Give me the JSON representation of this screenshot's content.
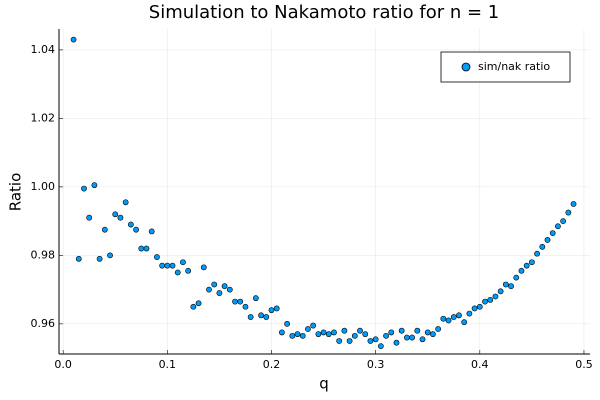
{
  "chart_data": {
    "type": "scatter",
    "title": "Simulation to Nakamoto ratio for n = 1",
    "x_label": "q",
    "y_label": "Ratio",
    "x": [
      0.01,
      0.015,
      0.02,
      0.025,
      0.03,
      0.035,
      0.04,
      0.045,
      0.05,
      0.055,
      0.06,
      0.065,
      0.07,
      0.075,
      0.08,
      0.085,
      0.09,
      0.095,
      0.1,
      0.105,
      0.11,
      0.115,
      0.12,
      0.125,
      0.13,
      0.135,
      0.14,
      0.145,
      0.15,
      0.155,
      0.16,
      0.165,
      0.17,
      0.175,
      0.18,
      0.185,
      0.19,
      0.195,
      0.2,
      0.205,
      0.21,
      0.215,
      0.22,
      0.225,
      0.23,
      0.235,
      0.24,
      0.245,
      0.25,
      0.255,
      0.26,
      0.265,
      0.27,
      0.275,
      0.28,
      0.285,
      0.29,
      0.295,
      0.3,
      0.305,
      0.31,
      0.315,
      0.32,
      0.325,
      0.33,
      0.335,
      0.34,
      0.345,
      0.35,
      0.355,
      0.36,
      0.365,
      0.37,
      0.375,
      0.38,
      0.385,
      0.39,
      0.395,
      0.4,
      0.405,
      0.41,
      0.415,
      0.42,
      0.425,
      0.43,
      0.435,
      0.44,
      0.445,
      0.45,
      0.455,
      0.46,
      0.465,
      0.47,
      0.475,
      0.48,
      0.485,
      0.49
    ],
    "series": [
      {
        "name": "sim/nak ratio",
        "color": "#009af9",
        "values": [
          1.043,
          0.979,
          0.9995,
          0.991,
          1.0005,
          0.979,
          0.9875,
          0.98,
          0.992,
          0.991,
          0.9955,
          0.989,
          0.9875,
          0.982,
          0.982,
          0.987,
          0.9795,
          0.977,
          0.977,
          0.977,
          0.975,
          0.978,
          0.9755,
          0.965,
          0.966,
          0.9765,
          0.97,
          0.9715,
          0.969,
          0.971,
          0.97,
          0.9665,
          0.9665,
          0.965,
          0.962,
          0.9675,
          0.9625,
          0.962,
          0.964,
          0.9645,
          0.9575,
          0.96,
          0.9565,
          0.957,
          0.9565,
          0.9585,
          0.9595,
          0.957,
          0.9575,
          0.957,
          0.9575,
          0.955,
          0.958,
          0.955,
          0.9565,
          0.958,
          0.957,
          0.955,
          0.9555,
          0.9535,
          0.9565,
          0.9575,
          0.9545,
          0.958,
          0.956,
          0.956,
          0.958,
          0.9555,
          0.9575,
          0.957,
          0.9585,
          0.9615,
          0.961,
          0.962,
          0.9625,
          0.9605,
          0.963,
          0.9645,
          0.965,
          0.9665,
          0.967,
          0.968,
          0.9695,
          0.9715,
          0.971,
          0.9735,
          0.9755,
          0.977,
          0.978,
          0.9805,
          0.9825,
          0.9845,
          0.9865,
          0.9885,
          0.99,
          0.9925,
          0.995
        ]
      }
    ],
    "xlim": [
      -0.004,
      0.5058
    ],
    "ylim": [
      0.9512,
      1.0461
    ],
    "xticks": [
      {
        "value": 0,
        "label": "0.0"
      },
      0.1,
      0.2,
      0.3,
      0.4,
      0.5
    ],
    "yticks": [
      0.96,
      0.98,
      {
        "value": 1,
        "label": "1.00"
      },
      1.02,
      1.04
    ],
    "grid": true,
    "legend": "top-right"
  }
}
